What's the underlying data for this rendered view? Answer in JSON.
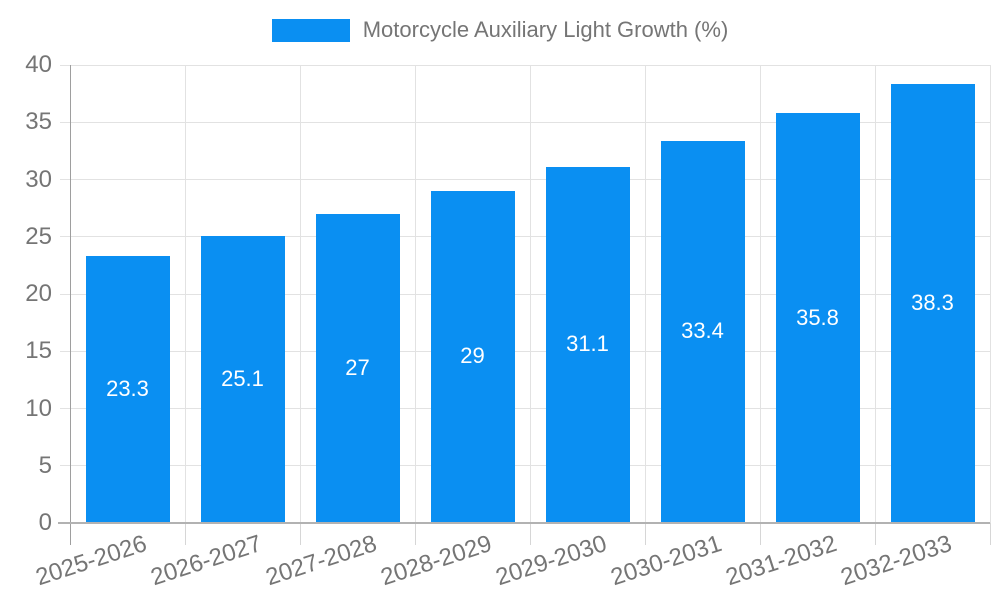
{
  "legend": {
    "label": "Motorcycle Auxiliary Light Growth (%)",
    "swatch_color": "#0a8ff2"
  },
  "chart_data": {
    "type": "bar",
    "title": "Motorcycle Auxiliary Light Growth (%)",
    "categories": [
      "2025-2026",
      "2026-2027",
      "2027-2028",
      "2028-2029",
      "2029-2030",
      "2030-2031",
      "2031-2032",
      "2032-2033"
    ],
    "values": [
      23.3,
      25.1,
      27,
      29,
      31.1,
      33.4,
      35.8,
      38.3
    ],
    "value_labels": [
      "23.3",
      "25.1",
      "27",
      "29",
      "31.1",
      "33.4",
      "35.8",
      "38.3"
    ],
    "xlabel": "",
    "ylabel": "",
    "ylim": [
      0,
      40
    ],
    "yticks": [
      0,
      5,
      10,
      15,
      20,
      25,
      30,
      35,
      40
    ],
    "grid": true,
    "legend_position": "top-center",
    "bar_color": "#0a8ff2",
    "value_label_color": "#ffffff",
    "axis_text_color": "#757575"
  }
}
